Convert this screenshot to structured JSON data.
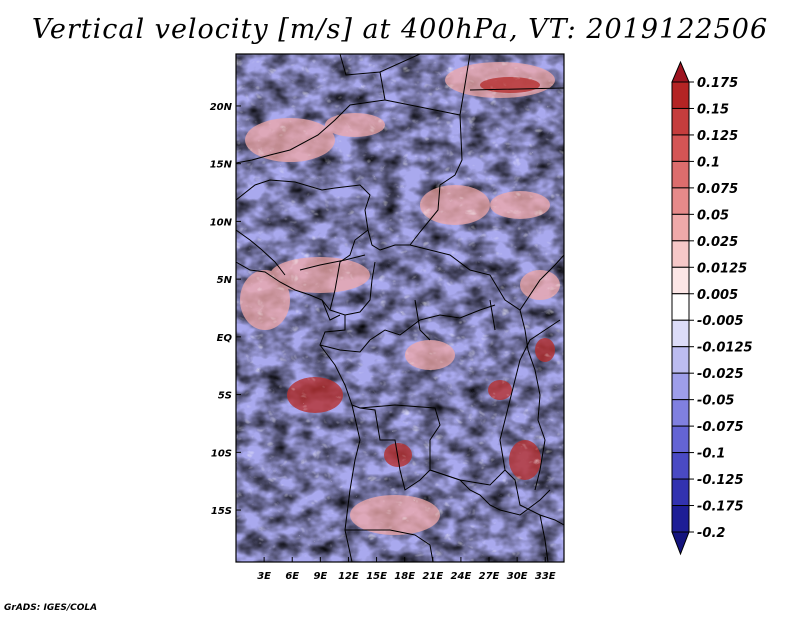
{
  "title": "Vertical velocity [m/s] at 400hPa, VT: 2019122506",
  "credit": "GrADS: IGES/COLA",
  "map": {
    "lat_labels": [
      "20N",
      "15N",
      "10N",
      "5N",
      "EQ",
      "5S",
      "10S",
      "15S"
    ],
    "lon_labels": [
      "3E",
      "6E",
      "9E",
      "12E",
      "15E",
      "18E",
      "21E",
      "24E",
      "27E",
      "30E",
      "33E"
    ],
    "lat_range": [
      -19.5,
      24.5
    ],
    "lon_range": [
      0,
      35
    ]
  },
  "colorbar": {
    "labels": [
      "0.175",
      "0.15",
      "0.125",
      "0.1",
      "0.075",
      "0.05",
      "0.025",
      "0.0125",
      "0.005",
      "-0.005",
      "-0.0125",
      "-0.025",
      "-0.05",
      "-0.075",
      "-0.1",
      "-0.125",
      "-0.175",
      "-0.2"
    ],
    "colors": [
      "#9e1420",
      "#b42424",
      "#c53d3d",
      "#d45555",
      "#dc6d6d",
      "#e68a8a",
      "#efa9a9",
      "#f6c8c8",
      "#fce6e6",
      "#ffffff",
      "#dcdcf8",
      "#bcbcf0",
      "#9e9eea",
      "#8080e0",
      "#6464d4",
      "#4a4ac4",
      "#3232b0",
      "#1e1e96",
      "#14147e"
    ]
  }
}
